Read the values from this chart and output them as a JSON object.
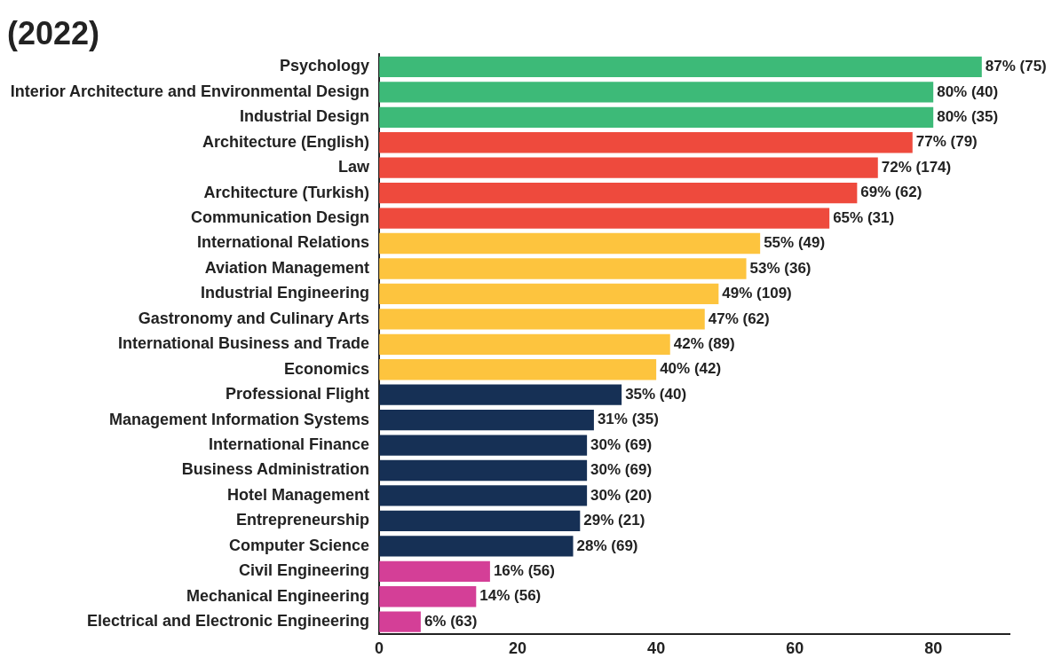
{
  "chart_data": {
    "type": "bar",
    "orientation": "horizontal",
    "title": "(2022)",
    "categories": [
      "Psychology",
      "Interior Architecture and Environmental Design",
      "Industrial Design",
      "Architecture (English)",
      "Law",
      "Architecture (Turkish)",
      "Communication Design",
      "International Relations",
      "Aviation Management",
      "Industrial Engineering",
      "Gastronomy and Culinary Arts",
      "International Business and Trade",
      "Economics",
      "Professional Flight",
      "Management Information Systems",
      "International Finance",
      "Business Administration",
      "Hotel Management",
      "Entrepreneurship",
      "Computer Science",
      "Civil Engineering",
      "Mechanical Engineering",
      "Electrical and Electronic Engineering"
    ],
    "values": [
      87,
      80,
      80,
      77,
      72,
      69,
      65,
      55,
      53,
      49,
      47,
      42,
      40,
      35,
      31,
      30,
      30,
      30,
      29,
      28,
      16,
      14,
      6
    ],
    "value_labels": [
      "87% (75)",
      "80% (40)",
      "80% (35)",
      "77% (79)",
      "72% (174)",
      "69% (62)",
      "65% (31)",
      "55% (49)",
      "53% (36)",
      "49% (109)",
      "47% (62)",
      "42% (89)",
      "40% (42)",
      "35% (40)",
      "31% (35)",
      "30% (69)",
      "30% (69)",
      "30% (20)",
      "29% (21)",
      "28% (69)",
      "16% (56)",
      "14% (56)",
      "6% (63)"
    ],
    "colors": [
      "#3dba78",
      "#3dba78",
      "#3dba78",
      "#ee4a3d",
      "#ee4a3d",
      "#ee4a3d",
      "#ee4a3d",
      "#fdc43e",
      "#fdc43e",
      "#fdc43e",
      "#fdc43e",
      "#fdc43e",
      "#fdc43e",
      "#163055",
      "#163055",
      "#163055",
      "#163055",
      "#163055",
      "#163055",
      "#163055",
      "#d43f97",
      "#d43f97",
      "#d43f97"
    ],
    "xlim": [
      0,
      91
    ],
    "xticks": [
      0,
      20,
      40,
      60,
      80
    ],
    "grid": false,
    "legend": false
  }
}
